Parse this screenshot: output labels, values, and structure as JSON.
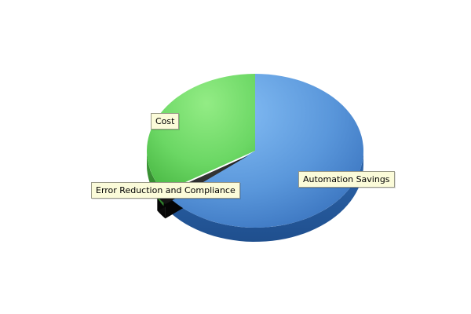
{
  "chart_data": {
    "type": "pie",
    "three_d": true,
    "start_angle_deg": 90,
    "direction": "clockwise",
    "legend": "none",
    "slices": [
      {
        "label": "Automation Savings",
        "value": 64,
        "color": "#4a8cd6"
      },
      {
        "label": "Error Reduction and Compliance",
        "value": 2,
        "color": "#1e1e1e"
      },
      {
        "label": "Cost",
        "value": 34,
        "color": "#5ccd55"
      }
    ]
  }
}
